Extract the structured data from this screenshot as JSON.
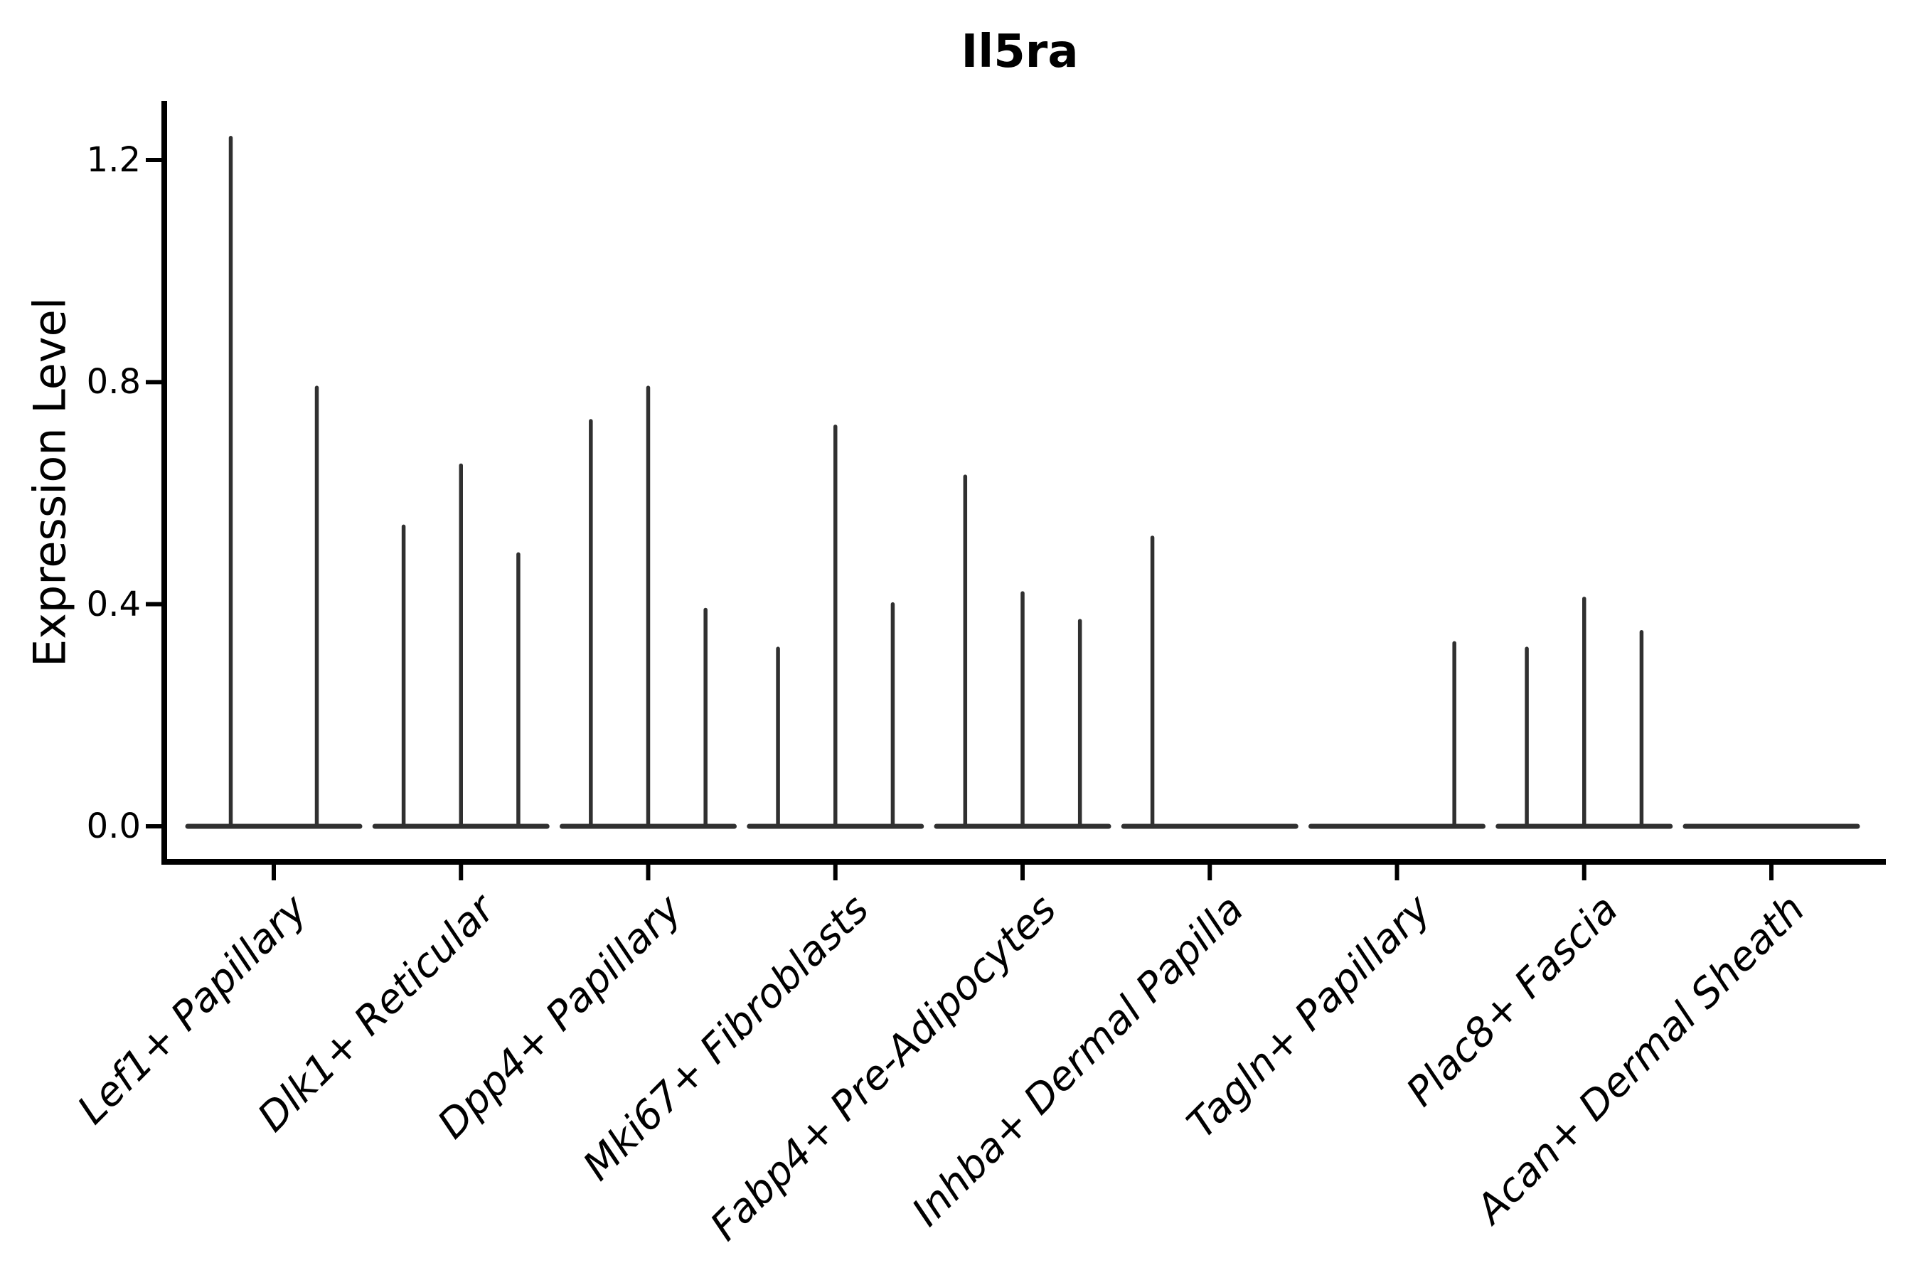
{
  "chart_data": {
    "type": "violin",
    "title": "Il5ra",
    "xlabel": "",
    "ylabel": "Expression Level",
    "ylim": [
      -0.06,
      1.31
    ],
    "yticks": [
      "0.0",
      "0.4",
      "0.8",
      "1.2"
    ],
    "ytick_values": [
      0.0,
      0.4,
      0.8,
      1.2
    ],
    "grid": false,
    "legend_position": "none",
    "categories": [
      "Lef1+ Papillary",
      "Dlk1+ Reticular",
      "Dpp4+ Papillary",
      "Mki67+ Fibroblasts",
      "Fabp4+ Pre-Adipocytes",
      "Inhba+ Dermal Papilla",
      "Tagln+ Papillary",
      "Plac8+ Fascia",
      "Acan+ Dermal Sheath"
    ],
    "groups": [
      {
        "category": "Lef1+ Papillary",
        "violin_peaks": [
          1.24,
          0.79
        ]
      },
      {
        "category": "Dlk1+ Reticular",
        "violin_peaks": [
          0.54,
          0.65,
          0.49
        ]
      },
      {
        "category": "Dpp4+ Papillary",
        "violin_peaks": [
          0.73,
          0.79,
          0.39
        ]
      },
      {
        "category": "Mki67+ Fibroblasts",
        "violin_peaks": [
          0.32,
          0.72,
          0.4
        ]
      },
      {
        "category": "Fabp4+ Pre-Adipocytes",
        "violin_peaks": [
          0.63,
          0.42,
          0.37
        ]
      },
      {
        "category": "Inhba+ Dermal Papilla",
        "violin_peaks": [
          0.52,
          0.0,
          0.0
        ]
      },
      {
        "category": "Tagln+ Papillary",
        "violin_peaks": [
          0.0,
          0.0,
          0.33
        ]
      },
      {
        "category": "Plac8+ Fascia",
        "violin_peaks": [
          0.32,
          0.41,
          0.35
        ]
      },
      {
        "category": "Acan+ Dermal Sheath",
        "violin_peaks": [
          0.0,
          0.0,
          0.0
        ]
      }
    ],
    "colors": {
      "violin": "#303030",
      "axis": "#000000",
      "background": "#ffffff"
    }
  }
}
